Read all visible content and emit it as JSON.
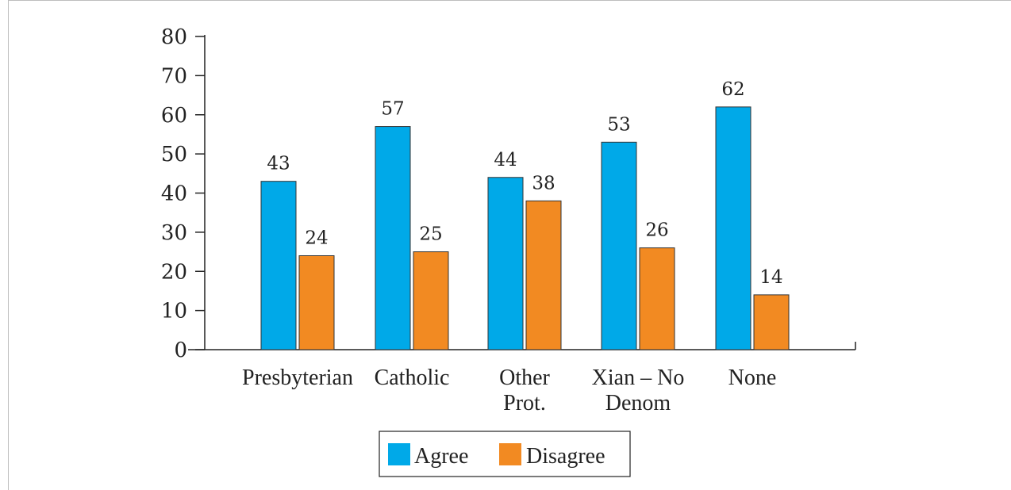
{
  "chart_data": {
    "type": "bar",
    "categories": [
      [
        "Presbyterian"
      ],
      [
        "Catholic"
      ],
      [
        "Other",
        "Prot."
      ],
      [
        "Xian – No",
        "Denom"
      ],
      [
        "None"
      ]
    ],
    "series": [
      {
        "name": "Agree",
        "color": "#00a9e8",
        "values": [
          43,
          57,
          44,
          53,
          62
        ]
      },
      {
        "name": "Disagree",
        "color": "#f28a22",
        "values": [
          24,
          25,
          38,
          26,
          14
        ]
      }
    ],
    "yticks": [
      0,
      10,
      20,
      30,
      40,
      50,
      60,
      70,
      80
    ],
    "ylim": [
      0,
      80
    ],
    "grid": false,
    "legend": "bottom-center",
    "title": "",
    "xlabel": "",
    "ylabel": ""
  }
}
